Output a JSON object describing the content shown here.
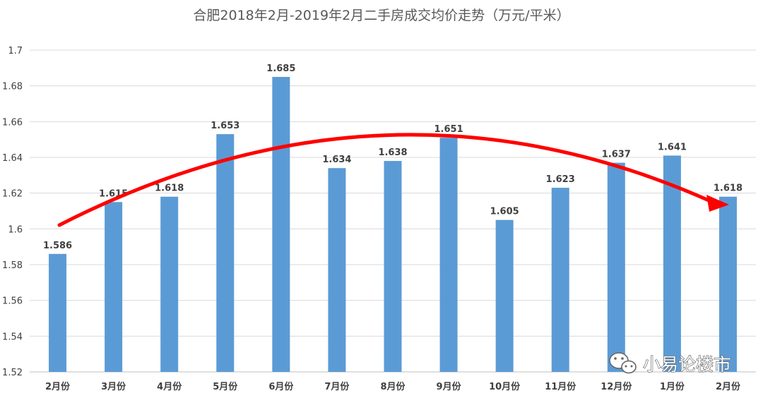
{
  "chart_data": {
    "type": "bar",
    "title": "合肥2018年2月-2019年2月二手房成交均价走势（万元/平米）",
    "xlabel": "",
    "ylabel": "",
    "categories": [
      "2月份",
      "3月份",
      "4月份",
      "5月份",
      "6月份",
      "7月份",
      "8月份",
      "9月份",
      "10月份",
      "11月份",
      "12月份",
      "1月份",
      "2月份"
    ],
    "values": [
      1.586,
      1.615,
      1.618,
      1.653,
      1.685,
      1.634,
      1.638,
      1.651,
      1.605,
      1.623,
      1.637,
      1.641,
      1.618
    ],
    "value_labels": [
      "1.586",
      "1.615",
      "1.618",
      "1.653",
      "1.685",
      "1.634",
      "1.638",
      "1.651",
      "1.605",
      "1.623",
      "1.637",
      "1.641",
      "1.618"
    ],
    "ylim": [
      1.52,
      1.7
    ],
    "yticks": [
      "1.52",
      "1.54",
      "1.56",
      "1.58",
      "1.6",
      "1.62",
      "1.64",
      "1.66",
      "1.68",
      "1.7"
    ],
    "grid": true,
    "legend": "none",
    "bar_color": "#5B9BD5",
    "annotation": {
      "type": "trend-arrow",
      "color": "#FF0000",
      "direction": "left-to-right"
    }
  },
  "watermark": {
    "text": "小易论楼市",
    "icon": "wechat-icon"
  }
}
